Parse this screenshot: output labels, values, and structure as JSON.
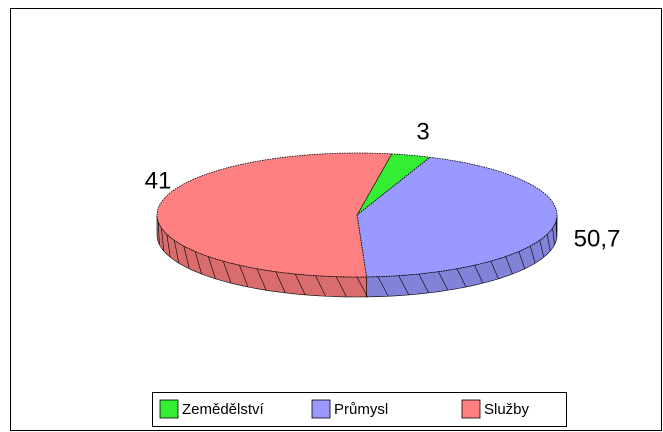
{
  "chart_data": {
    "type": "pie",
    "categories": [
      "Zemědělství",
      "Průmysl",
      "Služby"
    ],
    "values": [
      3,
      41,
      50.7
    ],
    "value_labels": [
      "3",
      "41",
      "50,7"
    ],
    "colors": [
      "#33ee33",
      "#9999ff",
      "#ff8080"
    ],
    "legend": "bottom"
  }
}
